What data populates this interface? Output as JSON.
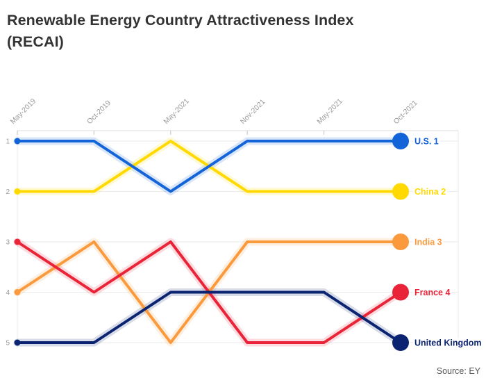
{
  "header": {
    "title": "Renewable Energy Country Attractiveness Index (RECAI)",
    "title_lines": [
      "Renewable Energy Country Attractiveness Index",
      "(RECAI)"
    ]
  },
  "source": "Source: EY",
  "chart_data": {
    "type": "line",
    "subtype": "bump-rank",
    "title": "Renewable Energy Country Attractiveness Index (RECAI)",
    "x": [
      "May-2019",
      "Oct-2019",
      "May-2021",
      "Nov-2021",
      "May-2021",
      "Oct-2021"
    ],
    "y_ticks": [
      1,
      2,
      3,
      4,
      5
    ],
    "ylim": [
      1,
      5
    ],
    "y_inverted": true,
    "grid": true,
    "legend_position": "right-end-labels",
    "axis_color": "#e3e3e3",
    "grid_color": "#ededed",
    "tick_label_color": "#9a9a9a",
    "series": [
      {
        "name": "U.S.",
        "end_label": "U.S. 1",
        "color": "#1264d8",
        "values": [
          1,
          1,
          2,
          1,
          1,
          1
        ]
      },
      {
        "name": "China",
        "end_label": "China 2",
        "color": "#ffd900",
        "values": [
          2,
          2,
          1,
          2,
          2,
          2
        ]
      },
      {
        "name": "India",
        "end_label": "India 3",
        "color": "#fb9a3c",
        "values": [
          4,
          3,
          5,
          3,
          3,
          3
        ]
      },
      {
        "name": "France",
        "end_label": "France 4",
        "color": "#ea2438",
        "values": [
          3,
          4,
          3,
          5,
          5,
          4
        ]
      },
      {
        "name": "United Kingdom",
        "end_label": "United Kingdom",
        "color": "#0b2472",
        "values": [
          5,
          5,
          4,
          4,
          4,
          5
        ]
      }
    ],
    "draw_order": [
      1,
      2,
      3,
      4,
      0
    ]
  }
}
